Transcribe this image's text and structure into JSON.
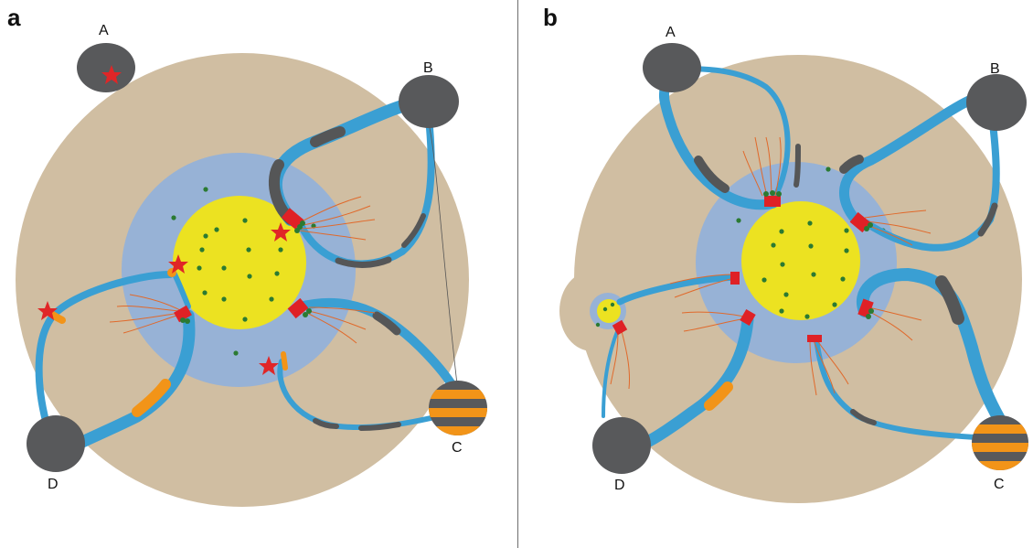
{
  "panels": [
    {
      "letter": "a",
      "poles": [
        {
          "label": "A",
          "pattern": "solid-dark"
        },
        {
          "label": "B",
          "pattern": "solid-dark"
        },
        {
          "label": "C",
          "pattern": "striped"
        },
        {
          "label": "D",
          "pattern": "solid-dark"
        }
      ]
    },
    {
      "letter": "b",
      "poles": [
        {
          "label": "A",
          "pattern": "solid-dark"
        },
        {
          "label": "B",
          "pattern": "solid-dark"
        },
        {
          "label": "C",
          "pattern": "striped"
        },
        {
          "label": "D",
          "pattern": "solid-dark"
        }
      ]
    }
  ],
  "colors": {
    "cell": "#d0bea2",
    "zone": "#97b2d6",
    "nucleus": "#ece221",
    "fiber": "#3a9fd3",
    "fiber_dark": "#555657",
    "orange": "#f29418",
    "kinetochore": "#df2126",
    "granule": "#2b7a32",
    "filament": "#e0692b",
    "pole": "#58595b",
    "star": "#e02627"
  },
  "icons": [
    "star-icon"
  ]
}
